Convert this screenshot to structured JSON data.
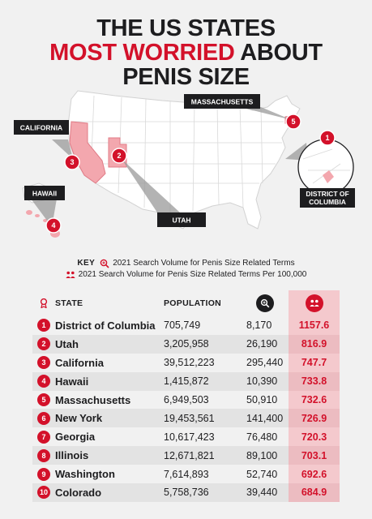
{
  "title": {
    "line1": "THE US STATES",
    "line2_red": "MOST WORRIED",
    "line2_rest": " ABOUT",
    "line3": "PENIS SIZE"
  },
  "map": {
    "callouts": [
      {
        "label": "MASSACHUSETTS",
        "num": "5"
      },
      {
        "label": "CALIFORNIA",
        "num": "3"
      },
      {
        "label": "UTAH",
        "num": "2"
      },
      {
        "label": "HAWAII",
        "num": "4"
      },
      {
        "label": "DISTRICT OF COLUMBIA",
        "line1": "DISTRICT OF",
        "line2": "COLUMBIA",
        "num": "1"
      }
    ],
    "colors": {
      "land": "#ffffff",
      "borders": "#d2d2d2",
      "highlight": "#f3a7ae",
      "accent": "#d3112a",
      "label_bg": "#1d1d1f"
    }
  },
  "key": {
    "label": "KEY",
    "item1": "2021 Search Volume for Penis Size Related Terms",
    "item1_icon": "magnifier-icon",
    "item2": "2021 Search Volume for Penis Size Related Terms Per 100,000",
    "item2_icon": "people-icon"
  },
  "chart_data": {
    "type": "table",
    "columns": [
      "STATE",
      "POPULATION",
      "search-volume",
      "per-100000"
    ],
    "header": {
      "state": "STATE",
      "population": "POPULATION"
    },
    "rows": [
      {
        "rank": "1",
        "state": "District of Columbia",
        "population": "705,749",
        "volume": "8,170",
        "per100k": "1157.6"
      },
      {
        "rank": "2",
        "state": "Utah",
        "population": "3,205,958",
        "volume": "26,190",
        "per100k": "816.9"
      },
      {
        "rank": "3",
        "state": "California",
        "population": "39,512,223",
        "volume": "295,440",
        "per100k": "747.7"
      },
      {
        "rank": "4",
        "state": "Hawaii",
        "population": "1,415,872",
        "volume": "10,390",
        "per100k": "733.8"
      },
      {
        "rank": "5",
        "state": "Massachusetts",
        "population": "6,949,503",
        "volume": "50,910",
        "per100k": "732.6"
      },
      {
        "rank": "6",
        "state": "New York",
        "population": "19,453,561",
        "volume": "141,400",
        "per100k": "726.9"
      },
      {
        "rank": "7",
        "state": "Georgia",
        "population": "10,617,423",
        "volume": "76,480",
        "per100k": "720.3"
      },
      {
        "rank": "8",
        "state": "Illinois",
        "population": "12,671,821",
        "volume": "89,100",
        "per100k": "703.1"
      },
      {
        "rank": "9",
        "state": "Washington",
        "population": "7,614,893",
        "volume": "52,740",
        "per100k": "692.6"
      },
      {
        "rank": "10",
        "state": "Colorado",
        "population": "5,758,736",
        "volume": "39,440",
        "per100k": "684.9"
      }
    ]
  }
}
